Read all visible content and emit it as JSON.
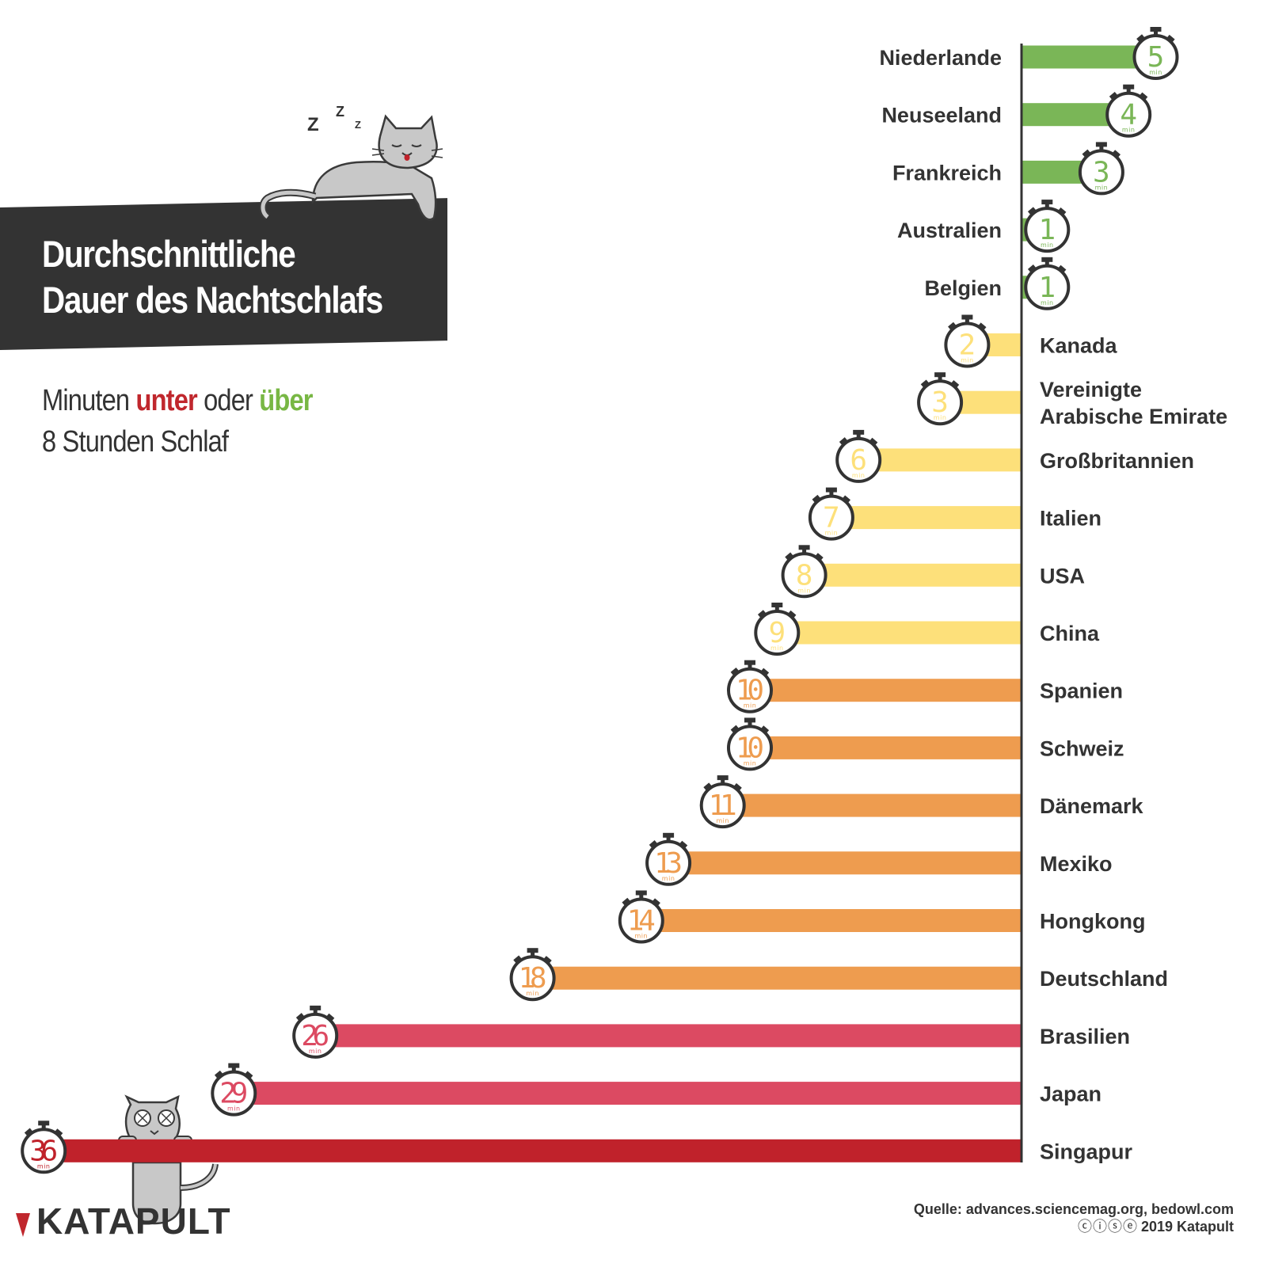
{
  "title_line1": "Durchschnittliche",
  "title_line2": "Dauer des Nachtschlafs",
  "subtitle": {
    "part1": "Minuten ",
    "neg_word": "unter",
    "part2": " oder ",
    "pos_word": "über",
    "line2": "8 Stunden Schlaf"
  },
  "logo": "KATAPULT",
  "source": "Quelle: advances.sciencemag.org, bedowl.com",
  "copyright": "2019 Katapult",
  "license_icons": "cc-by-nc-nd-icons",
  "colors": {
    "green": "#7ab657",
    "yellow": "#fde07a",
    "orange": "#ee9c4f",
    "pink": "#dc4a62",
    "red": "#c0222b"
  },
  "chart_data": {
    "type": "bar",
    "orientation": "horizontal",
    "unit": "min",
    "baseline": "8 Stunden",
    "categories": [
      "Niederlande",
      "Neuseeland",
      "Frankreich",
      "Australien",
      "Belgien",
      "Kanada",
      "Vereinigte Arabische Emirate",
      "Großbritannien",
      "Italien",
      "USA",
      "China",
      "Spanien",
      "Schweiz",
      "Dänemark",
      "Mexiko",
      "Hongkong",
      "Deutschland",
      "Brasilien",
      "Japan",
      "Singapur"
    ],
    "labels": [
      [
        "Niederlande"
      ],
      [
        "Neuseeland"
      ],
      [
        "Frankreich"
      ],
      [
        "Australien"
      ],
      [
        "Belgien"
      ],
      [
        "Kanada"
      ],
      [
        "Vereinigte",
        "Arabische Emirate"
      ],
      [
        "Großbritannien"
      ],
      [
        "Italien"
      ],
      [
        "USA"
      ],
      [
        "China"
      ],
      [
        "Spanien"
      ],
      [
        "Schweiz"
      ],
      [
        "Dänemark"
      ],
      [
        "Mexiko"
      ],
      [
        "Hongkong"
      ],
      [
        "Deutschland"
      ],
      [
        "Brasilien"
      ],
      [
        "Japan"
      ],
      [
        "Singapur"
      ]
    ],
    "values": [
      5,
      4,
      3,
      1,
      1,
      -2,
      -3,
      -6,
      -7,
      -8,
      -9,
      -10,
      -10,
      -11,
      -13,
      -14,
      -18,
      -26,
      -29,
      -36
    ],
    "display_values": [
      "5",
      "4",
      "3",
      "1",
      "1",
      "2",
      "3",
      "6",
      "7",
      "8",
      "9",
      "10",
      "10",
      "11",
      "13",
      "14",
      "18",
      "26",
      "29",
      "36"
    ],
    "color_groups": [
      "green",
      "green",
      "green",
      "green",
      "green",
      "yellow",
      "yellow",
      "yellow",
      "yellow",
      "yellow",
      "yellow",
      "orange",
      "orange",
      "orange",
      "orange",
      "orange",
      "orange",
      "pink",
      "pink",
      "red"
    ]
  }
}
